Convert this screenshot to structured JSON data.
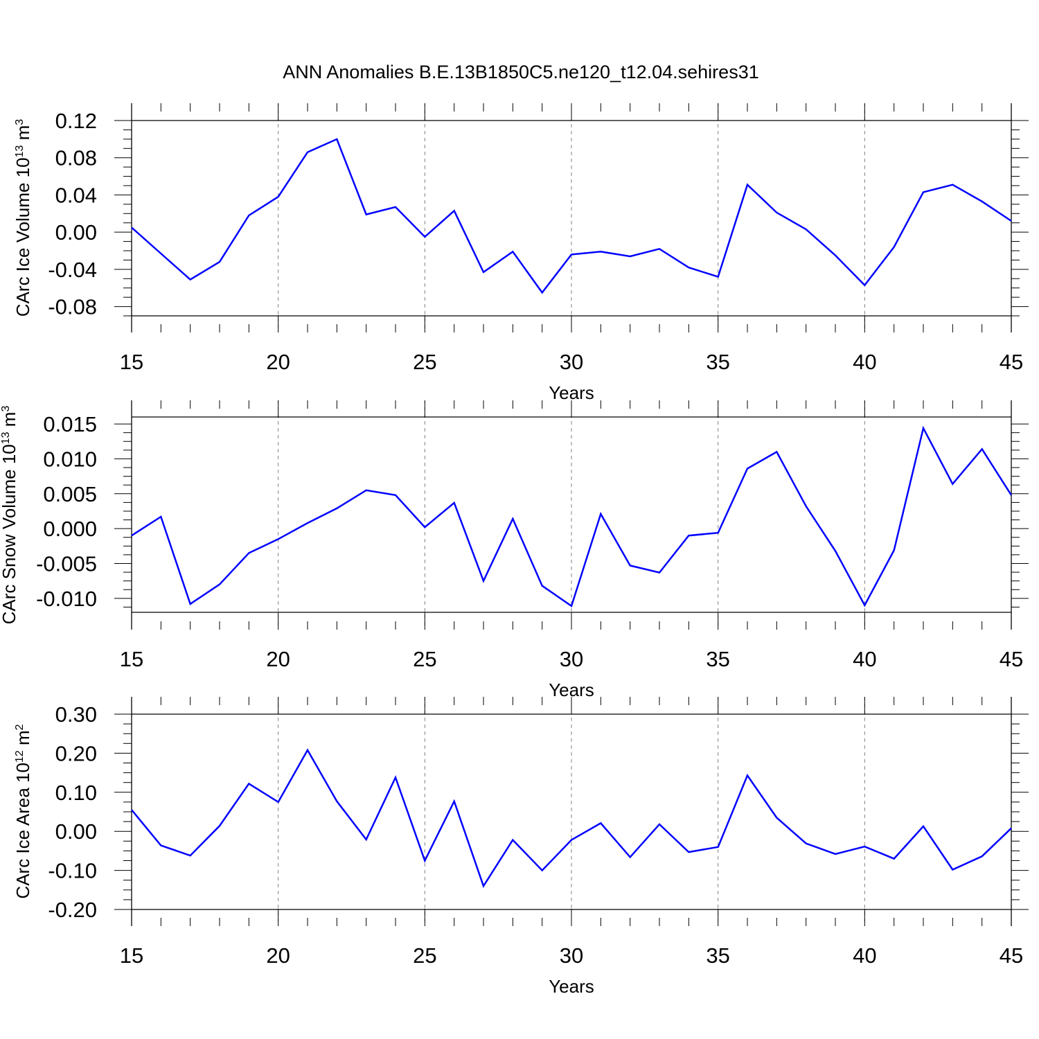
{
  "title": "ANN Anomalies B.E.13B1850C5.ne120_t12.04.sehires31",
  "colors": {
    "line": "#0000ff",
    "axis": "#000000",
    "grid": "#808080"
  },
  "chart_data": [
    {
      "type": "line",
      "xlabel": "Years",
      "ylabel_main": "CArc Ice Volume 10",
      "ylabel_exp": "13",
      "ylabel_unit": " m",
      "ylabel_unit_exp": "3",
      "xlim": [
        15,
        45
      ],
      "ylim": [
        -0.09,
        0.12
      ],
      "xticks": [
        15,
        20,
        25,
        30,
        35,
        40,
        45
      ],
      "xtick_labels": [
        "15",
        "20",
        "25",
        "30",
        "35",
        "40",
        "45"
      ],
      "yticks": [
        -0.08,
        -0.04,
        0.0,
        0.04,
        0.08,
        0.12
      ],
      "ytick_labels": [
        "-0.08",
        "-0.04",
        "0.00",
        "0.04",
        "0.08",
        "0.12"
      ],
      "x": [
        15,
        16,
        17,
        18,
        19,
        20,
        21,
        22,
        23,
        24,
        25,
        26,
        27,
        28,
        29,
        30,
        31,
        32,
        33,
        34,
        35,
        36,
        37,
        38,
        39,
        40,
        41,
        42,
        43,
        44,
        45
      ],
      "y": [
        0.005,
        -0.023,
        -0.051,
        -0.032,
        0.018,
        0.038,
        0.086,
        0.1,
        0.019,
        0.027,
        -0.005,
        0.023,
        -0.043,
        -0.021,
        -0.065,
        -0.024,
        -0.021,
        -0.026,
        -0.018,
        -0.038,
        -0.048,
        0.051,
        0.021,
        0.003,
        -0.025,
        -0.057,
        -0.016,
        0.043,
        0.051,
        0.033,
        0.012
      ]
    },
    {
      "type": "line",
      "xlabel": "Years",
      "ylabel_main": "CArc Snow Volume 10",
      "ylabel_exp": "13",
      "ylabel_unit": " m",
      "ylabel_unit_exp": "3",
      "xlim": [
        15,
        45
      ],
      "ylim": [
        -0.012,
        0.016
      ],
      "xticks": [
        15,
        20,
        25,
        30,
        35,
        40,
        45
      ],
      "xtick_labels": [
        "15",
        "20",
        "25",
        "30",
        "35",
        "40",
        "45"
      ],
      "yticks": [
        -0.01,
        -0.005,
        0.0,
        0.005,
        0.01,
        0.015
      ],
      "ytick_labels": [
        "-0.010",
        "-0.005",
        "0.000",
        "0.005",
        "0.010",
        "0.015"
      ],
      "x": [
        15,
        16,
        17,
        18,
        19,
        20,
        21,
        22,
        23,
        24,
        25,
        26,
        27,
        28,
        29,
        30,
        31,
        32,
        33,
        34,
        35,
        36,
        37,
        38,
        39,
        40,
        41,
        42,
        43,
        44,
        45
      ],
      "y": [
        -0.001,
        0.0017,
        -0.0108,
        -0.008,
        -0.0035,
        -0.0015,
        0.0008,
        0.0029,
        0.0055,
        0.0048,
        0.0002,
        0.0037,
        -0.0075,
        0.0014,
        -0.0082,
        -0.0111,
        0.0021,
        -0.0053,
        -0.0063,
        -0.001,
        -0.0006,
        0.0086,
        0.011,
        0.0032,
        -0.0032,
        -0.011,
        -0.0031,
        0.0144,
        0.0064,
        0.0114,
        0.0048
      ]
    },
    {
      "type": "line",
      "xlabel": "Years",
      "ylabel_main": "CArc Ice Area 10",
      "ylabel_exp": "12",
      "ylabel_unit": " m",
      "ylabel_unit_exp": "2",
      "xlim": [
        15,
        45
      ],
      "ylim": [
        -0.2,
        0.3
      ],
      "xticks": [
        15,
        20,
        25,
        30,
        35,
        40,
        45
      ],
      "xtick_labels": [
        "15",
        "20",
        "25",
        "30",
        "35",
        "40",
        "45"
      ],
      "yticks": [
        -0.2,
        -0.1,
        0.0,
        0.1,
        0.2,
        0.3
      ],
      "ytick_labels": [
        "-0.20",
        "-0.10",
        "0.00",
        "0.10",
        "0.20",
        "0.30"
      ],
      "x": [
        15,
        16,
        17,
        18,
        19,
        20,
        21,
        22,
        23,
        24,
        25,
        26,
        27,
        28,
        29,
        30,
        31,
        32,
        33,
        34,
        35,
        36,
        37,
        38,
        39,
        40,
        41,
        42,
        43,
        44,
        45
      ],
      "y": [
        0.055,
        -0.036,
        -0.062,
        0.014,
        0.122,
        0.075,
        0.208,
        0.077,
        -0.021,
        0.138,
        -0.075,
        0.077,
        -0.14,
        -0.022,
        -0.1,
        -0.022,
        0.021,
        -0.066,
        0.018,
        -0.053,
        -0.04,
        0.143,
        0.035,
        -0.031,
        -0.058,
        -0.039,
        -0.07,
        0.013,
        -0.098,
        -0.064,
        0.008
      ]
    }
  ]
}
